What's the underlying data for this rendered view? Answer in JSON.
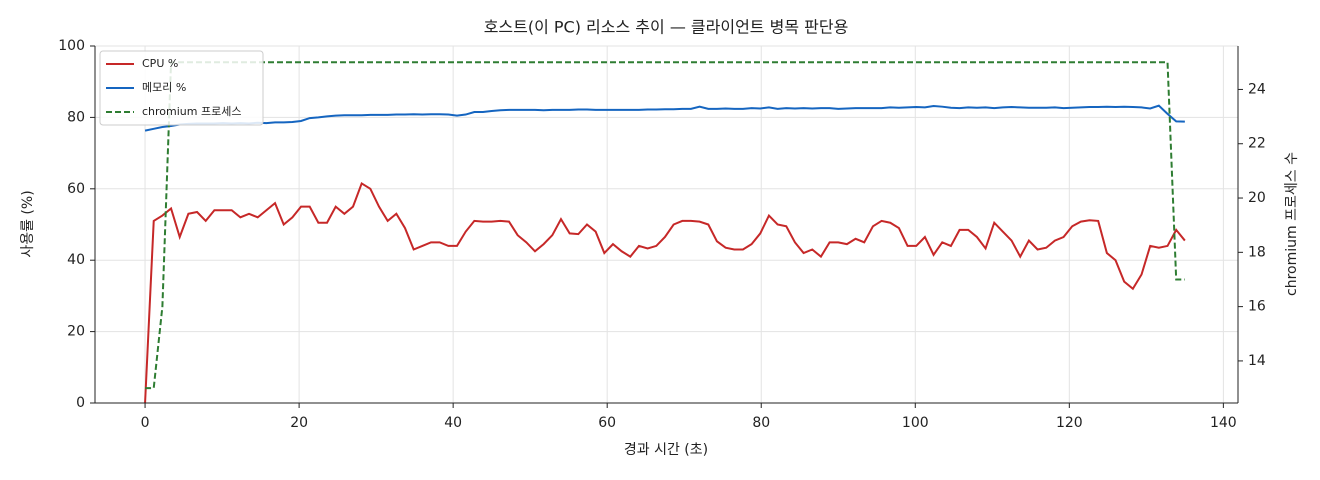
{
  "chart_data": {
    "type": "line",
    "title": "호스트(이 PC) 리소스 추이 — 클라이언트 병목 판단용",
    "xlabel": "경과 시간 (초)",
    "ylabel": "사용률 (%)",
    "y2label": "chromium 프로세스 수",
    "x": [
      0,
      1.125,
      2.25,
      3.375,
      4.5,
      5.625,
      6.75,
      7.875,
      9,
      10.125,
      11.25,
      12.375,
      13.5,
      14.625,
      15.75,
      16.875,
      18,
      19.125,
      20.25,
      21.375,
      22.5,
      23.625,
      24.75,
      25.875,
      27,
      28.125,
      29.25,
      30.375,
      31.5,
      32.625,
      33.75,
      34.875,
      36,
      37.125,
      38.25,
      39.375,
      40.5,
      41.625,
      42.75,
      43.875,
      45,
      46.125,
      47.25,
      48.375,
      49.5,
      50.625,
      51.75,
      52.875,
      54,
      55.125,
      56.25,
      57.375,
      58.5,
      59.625,
      60.75,
      61.875,
      63,
      64.125,
      65.25,
      66.375,
      67.5,
      68.625,
      69.75,
      70.875,
      72,
      73.125,
      74.25,
      75.375,
      76.5,
      77.625,
      78.75,
      79.875,
      81,
      82.125,
      83.25,
      84.375,
      85.5,
      86.625,
      87.75,
      88.875,
      90,
      91.125,
      92.25,
      93.375,
      94.5,
      95.625,
      96.75,
      97.875,
      99,
      100.125,
      101.25,
      102.375,
      103.5,
      104.625,
      105.75,
      106.875,
      108,
      109.125,
      110.25,
      111.375,
      112.5,
      113.625,
      114.75,
      115.875,
      117,
      118.125,
      119.25,
      120.375,
      121.5,
      122.625,
      123.75,
      124.875,
      126,
      127.125,
      128.25,
      129.375,
      130.5,
      131.625,
      132.75,
      133.875,
      135
    ],
    "series": [
      {
        "name": "CPU %",
        "color": "#c62828",
        "axis": "y",
        "linestyle": "solid",
        "values": [
          0,
          51,
          52.5,
          54.5,
          46.5,
          53,
          53.5,
          51,
          54,
          54,
          54,
          52,
          53,
          52,
          54,
          56,
          50,
          52,
          55,
          55,
          50.5,
          50.5,
          55,
          53,
          55,
          61.5,
          60,
          55,
          51,
          53,
          49,
          43,
          44,
          45,
          45,
          44,
          44,
          48,
          51,
          50.8,
          50.8,
          51,
          50.8,
          47,
          45,
          42.5,
          44.5,
          47,
          51.5,
          47.5,
          47.3,
          50,
          48,
          42,
          44.5,
          42.5,
          41,
          44,
          43.3,
          44,
          46.5,
          50,
          51,
          51,
          50.8,
          50,
          45.3,
          43.5,
          43,
          43,
          44.5,
          47.5,
          52.5,
          50,
          49.5,
          45,
          42,
          43,
          41,
          45,
          45,
          44.5,
          46,
          45,
          49.5,
          51,
          50.5,
          49,
          44,
          44,
          46.5,
          41.5,
          45,
          44,
          48.5,
          48.5,
          46.5,
          43.3,
          50.5,
          48,
          45.5,
          41,
          45.5,
          43,
          43.5,
          45.5,
          46.5,
          49.5,
          50.8,
          51.2,
          51,
          42,
          40,
          34,
          32,
          36,
          44,
          43.5,
          44,
          48.5,
          45.5
        ]
      },
      {
        "name": "메모리 %",
        "color": "#1565c0",
        "axis": "y",
        "linestyle": "solid",
        "values": [
          76.3,
          76.8,
          77.3,
          77.6,
          78,
          78.2,
          78.3,
          78.3,
          78.3,
          78.4,
          78.3,
          78.4,
          78.3,
          78.5,
          78.4,
          78.6,
          78.6,
          78.7,
          79,
          79.8,
          80,
          80.3,
          80.5,
          80.6,
          80.6,
          80.6,
          80.7,
          80.7,
          80.7,
          80.8,
          80.8,
          80.9,
          80.8,
          80.9,
          80.9,
          80.8,
          80.5,
          80.8,
          81.5,
          81.5,
          81.8,
          82,
          82.1,
          82.1,
          82.1,
          82.1,
          82,
          82.1,
          82.1,
          82.1,
          82.2,
          82.2,
          82.1,
          82.1,
          82.1,
          82.1,
          82.1,
          82.1,
          82.2,
          82.2,
          82.3,
          82.3,
          82.4,
          82.4,
          83,
          82.4,
          82.4,
          82.5,
          82.4,
          82.4,
          82.6,
          82.5,
          82.8,
          82.4,
          82.6,
          82.5,
          82.6,
          82.5,
          82.6,
          82.6,
          82.4,
          82.5,
          82.6,
          82.6,
          82.6,
          82.6,
          82.8,
          82.7,
          82.8,
          82.9,
          82.8,
          83.2,
          83,
          82.7,
          82.6,
          82.8,
          82.7,
          82.8,
          82.6,
          82.8,
          82.9,
          82.8,
          82.7,
          82.7,
          82.7,
          82.8,
          82.6,
          82.7,
          82.8,
          82.9,
          82.9,
          83,
          82.9,
          83,
          82.9,
          82.8,
          82.5,
          83.3,
          81,
          78.9,
          78.8
        ]
      },
      {
        "name": "chromium 프로세스",
        "color": "#2e7d32",
        "axis": "y2",
        "linestyle": "dashed",
        "values": [
          13,
          13,
          16,
          25,
          25,
          25,
          25,
          25,
          25,
          25,
          25,
          25,
          25,
          25,
          25,
          25,
          25,
          25,
          25,
          25,
          25,
          25,
          25,
          25,
          25,
          25,
          25,
          25,
          25,
          25,
          25,
          25,
          25,
          25,
          25,
          25,
          25,
          25,
          25,
          25,
          25,
          25,
          25,
          25,
          25,
          25,
          25,
          25,
          25,
          25,
          25,
          25,
          25,
          25,
          25,
          25,
          25,
          25,
          25,
          25,
          25,
          25,
          25,
          25,
          25,
          25,
          25,
          25,
          25,
          25,
          25,
          25,
          25,
          25,
          25,
          25,
          25,
          25,
          25,
          25,
          25,
          25,
          25,
          25,
          25,
          25,
          25,
          25,
          25,
          25,
          25,
          25,
          25,
          25,
          25,
          25,
          25,
          25,
          25,
          25,
          25,
          25,
          25,
          25,
          25,
          25,
          25,
          25,
          25,
          25,
          25,
          25,
          25,
          25,
          25,
          25,
          25,
          25,
          25,
          17,
          17
        ]
      }
    ],
    "xlim": [
      -6.5,
      141.9
    ],
    "xticks": [
      0,
      20,
      40,
      60,
      80,
      100,
      120,
      140
    ],
    "ylim": [
      0,
      100
    ],
    "yticks": [
      0,
      20,
      40,
      60,
      80,
      100
    ],
    "y2lim": [
      12.45,
      25.6
    ],
    "y2ticks": [
      14,
      16,
      18,
      20,
      22,
      24
    ],
    "grid": true,
    "legend": "upper-left"
  }
}
